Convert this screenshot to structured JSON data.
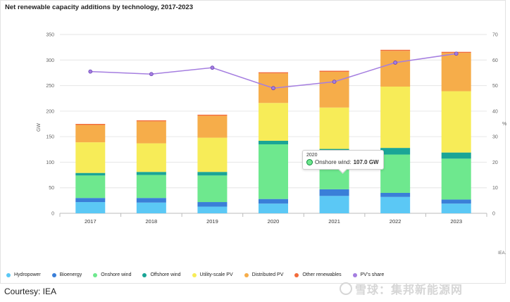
{
  "chart_data": {
    "type": "bar",
    "stacked": true,
    "title": "Net renewable capacity additions by technology, 2017-2023",
    "ylabel": "GW",
    "ylim": [
      0,
      350
    ],
    "yticks": [
      "0",
      "50",
      "100",
      "150",
      "200",
      "250",
      "300",
      "350"
    ],
    "y2label": "%",
    "y2lim": [
      0,
      70
    ],
    "y2ticks": [
      "0",
      "10",
      "20",
      "30",
      "40",
      "50",
      "60",
      "70"
    ],
    "categories": [
      "2017",
      "2018",
      "2019",
      "2020",
      "2021",
      "2022",
      "2023"
    ],
    "series": [
      {
        "name": "Hydropower",
        "color": "#5bc8f5",
        "values": [
          22,
          21,
          13,
          19,
          34,
          32,
          19
        ]
      },
      {
        "name": "Bioenergy",
        "color": "#3a7fd8",
        "values": [
          8,
          9,
          9,
          9,
          13,
          8,
          8
        ]
      },
      {
        "name": "Onshore wind",
        "color": "#6ee88e",
        "values": [
          44,
          45,
          52,
          107,
          60,
          75,
          80
        ]
      },
      {
        "name": "Offshore wind",
        "color": "#1aa596",
        "values": [
          5,
          6,
          7,
          7,
          19,
          13,
          12
        ]
      },
      {
        "name": "Utility-scale PV",
        "color": "#f7ec58",
        "values": [
          60,
          56,
          67,
          74,
          81,
          120,
          120
        ]
      },
      {
        "name": "Distributed PV",
        "color": "#f6ad4a",
        "values": [
          34,
          43,
          43,
          58,
          70,
          70,
          75
        ]
      },
      {
        "name": "Other renewables",
        "color": "#f26b3a",
        "values": [
          2,
          2,
          2,
          2,
          2,
          2,
          2
        ]
      }
    ],
    "line_series": {
      "name": "PV's share",
      "color": "#a57ee0",
      "axis": "right",
      "values": [
        55.5,
        54.5,
        57,
        49,
        51.5,
        59,
        62.5
      ]
    },
    "tooltip": {
      "year": "2020",
      "label": "Onshore wind:",
      "value": "107.0 GW"
    },
    "legend_position": "bottom",
    "grid": true
  },
  "legend": [
    "Hydropower",
    "Bioenergy",
    "Onshore wind",
    "Offshore wind",
    "Utility-scale PV",
    "Distributed PV",
    "Other renewables",
    "PV's share"
  ],
  "source_label": "IEA.",
  "courtesy": "Courtesy: IEA",
  "watermark": "雪球：集邦新能源网"
}
